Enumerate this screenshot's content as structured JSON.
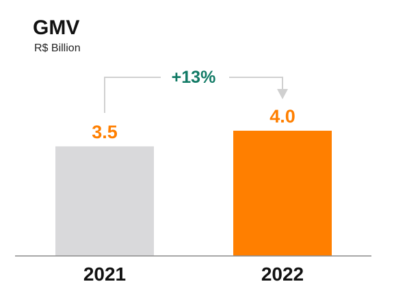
{
  "chart_data": {
    "type": "bar",
    "title": "GMV",
    "subtitle": "R$ Billion",
    "categories": [
      "2021",
      "2022"
    ],
    "values": [
      3.5,
      4.0
    ],
    "value_labels": [
      "3.5",
      "4.0"
    ],
    "ylim": [
      0,
      4.0
    ],
    "grid": false,
    "annotations": {
      "growth": "+13%"
    }
  },
  "colors": {
    "bar_2021": "#D9D9DB",
    "bar_2022": "#FF7F00",
    "value_label": "#FF7F00",
    "growth": "#117A65",
    "connector": "#D0D0D0",
    "axis": "#8A8A8A"
  }
}
